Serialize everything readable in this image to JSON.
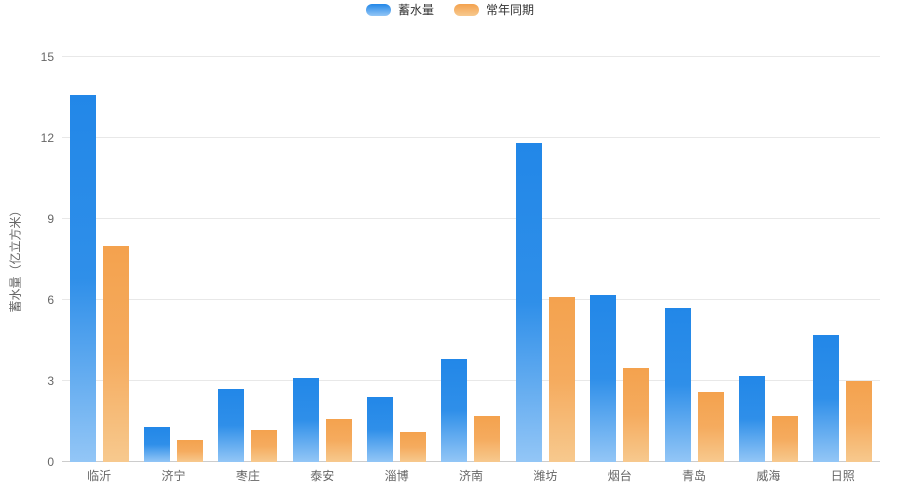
{
  "chart_data": {
    "type": "bar",
    "title": "",
    "categories": [
      "临沂",
      "济宁",
      "枣庄",
      "泰安",
      "淄博",
      "济南",
      "潍坊",
      "烟台",
      "青岛",
      "威海",
      "日照"
    ],
    "series": [
      {
        "name": "蓄水量",
        "values": [
          13.6,
          1.3,
          2.7,
          3.1,
          2.4,
          3.8,
          11.8,
          6.2,
          5.7,
          3.2,
          4.7
        ],
        "color_top": "#2287e8",
        "color_bottom": "#93c6f6"
      },
      {
        "name": "常年同期",
        "values": [
          8.0,
          0.8,
          1.2,
          1.6,
          1.1,
          1.7,
          6.1,
          3.5,
          2.6,
          1.7,
          3.0
        ],
        "color_top": "#f4a24e",
        "color_bottom": "#f7c98e"
      }
    ],
    "xlabel": "",
    "ylabel": "蓄水量（亿立方米）",
    "ylim": [
      0,
      15
    ],
    "yticks": [
      0,
      3,
      6,
      9,
      12,
      15
    ],
    "grid": true,
    "legend_position": "top-center",
    "colors": {
      "series_blue": "#2288e8",
      "series_orange": "#f4a85a",
      "gridline": "#e8e8e8",
      "axis_line": "#cccccc",
      "axis_text": "#666666",
      "legend_text": "#333333"
    }
  }
}
